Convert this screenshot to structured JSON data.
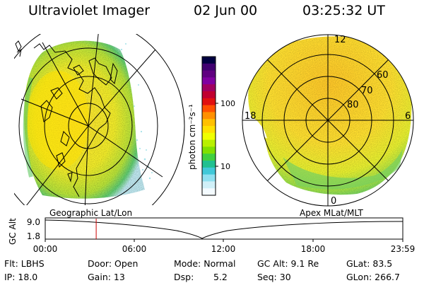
{
  "header": {
    "title": "Ultraviolet Imager",
    "date": "02 Jun 00",
    "time": "03:25:32 UT"
  },
  "left_panel": {
    "label": "Geographic Lat/Lon"
  },
  "right_panel": {
    "label": "Apex MLat/MLT",
    "mlt_labels": {
      "top": "12",
      "left": "18",
      "right": "6",
      "bottom": "0"
    },
    "lat_labels": [
      "60",
      "70",
      "80"
    ]
  },
  "colorbar": {
    "unit_label": "photon cm⁻²s⁻¹",
    "tick_labels": [
      "100",
      "10"
    ],
    "colors": [
      "#000040",
      "#400070",
      "#600080",
      "#8000a0",
      "#a00060",
      "#c00030",
      "#e01010",
      "#ff5000",
      "#ff9000",
      "#ffc000",
      "#ffe000",
      "#f0ff00",
      "#b8f000",
      "#80e000",
      "#40d040",
      "#20c090",
      "#40c8d8",
      "#90e0f0",
      "#d0f0f8",
      "#f4fbff"
    ]
  },
  "altitude_plot": {
    "ylabel": "GC Alt",
    "yticks": [
      "9.0",
      "1.8"
    ],
    "xticks": [
      "00:00",
      "06:00",
      "12:00",
      "18:00",
      "23:59"
    ],
    "marker_time_hours": 3.42,
    "marker_color": "#cc0000"
  },
  "info": {
    "filter": "Flt: LBHS",
    "door": "Door: Open",
    "mode": "Mode: Normal",
    "gc_alt": "GC Alt: 9.1 Re",
    "glat": "GLat:  83.5",
    "ip": "IP: 18.0",
    "gain": "Gain: 13",
    "dsp_label": "Dsp:",
    "dsp_value": "5.2",
    "seq": "Seq: 30",
    "glon": "GLon: 266.7"
  }
}
